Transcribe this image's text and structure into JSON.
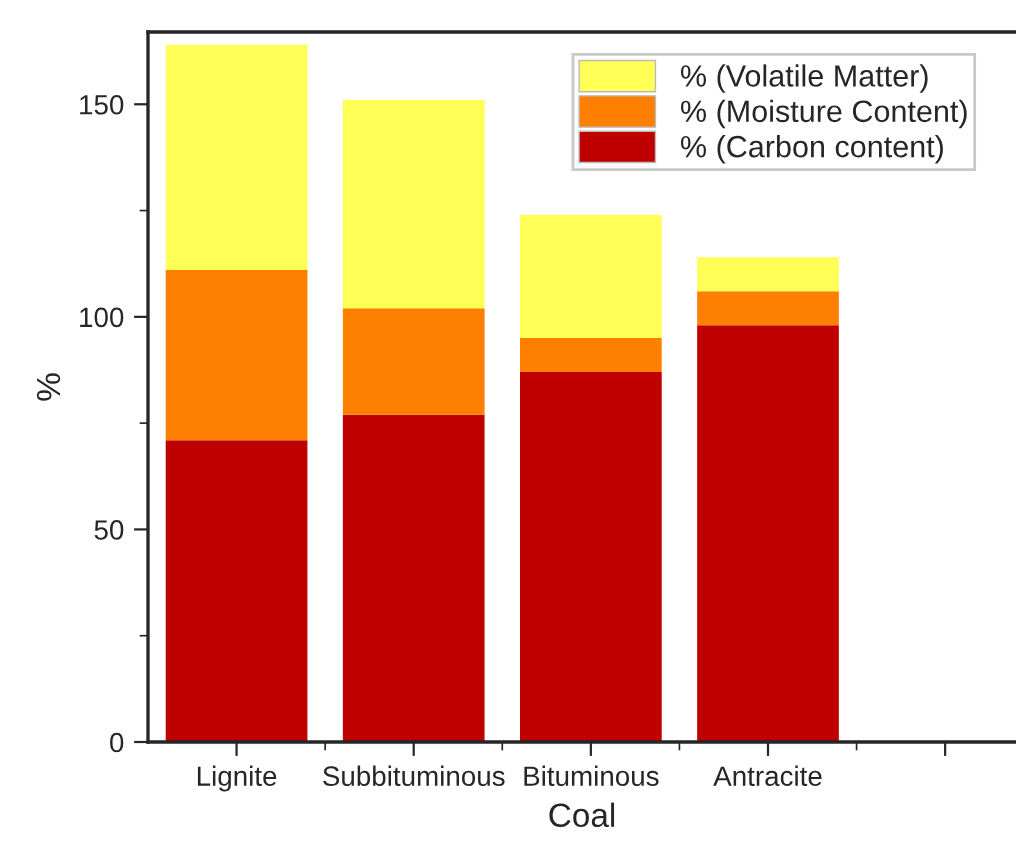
{
  "chart_data": {
    "type": "bar",
    "stacked": true,
    "xlabel": "Coal",
    "ylabel": "%",
    "categories": [
      "Lignite",
      "Subbituminous",
      "Bituminous",
      "Antracite",
      null
    ],
    "series": [
      {
        "name": "% (Carbon content)",
        "color": "#bf0000",
        "values": [
          71,
          77,
          87,
          98,
          null
        ]
      },
      {
        "name": "% (Moisture Content)",
        "color": "#ff8000",
        "values": [
          40,
          25,
          8,
          8,
          null
        ]
      },
      {
        "name": "% (Volatile Matter)",
        "color": "#ffff55",
        "values": [
          53,
          49,
          29,
          8,
          null
        ]
      }
    ],
    "ylim": [
      0,
      167
    ],
    "yticks": [
      0,
      50,
      100,
      150
    ],
    "grid": false,
    "legend": "top right"
  }
}
